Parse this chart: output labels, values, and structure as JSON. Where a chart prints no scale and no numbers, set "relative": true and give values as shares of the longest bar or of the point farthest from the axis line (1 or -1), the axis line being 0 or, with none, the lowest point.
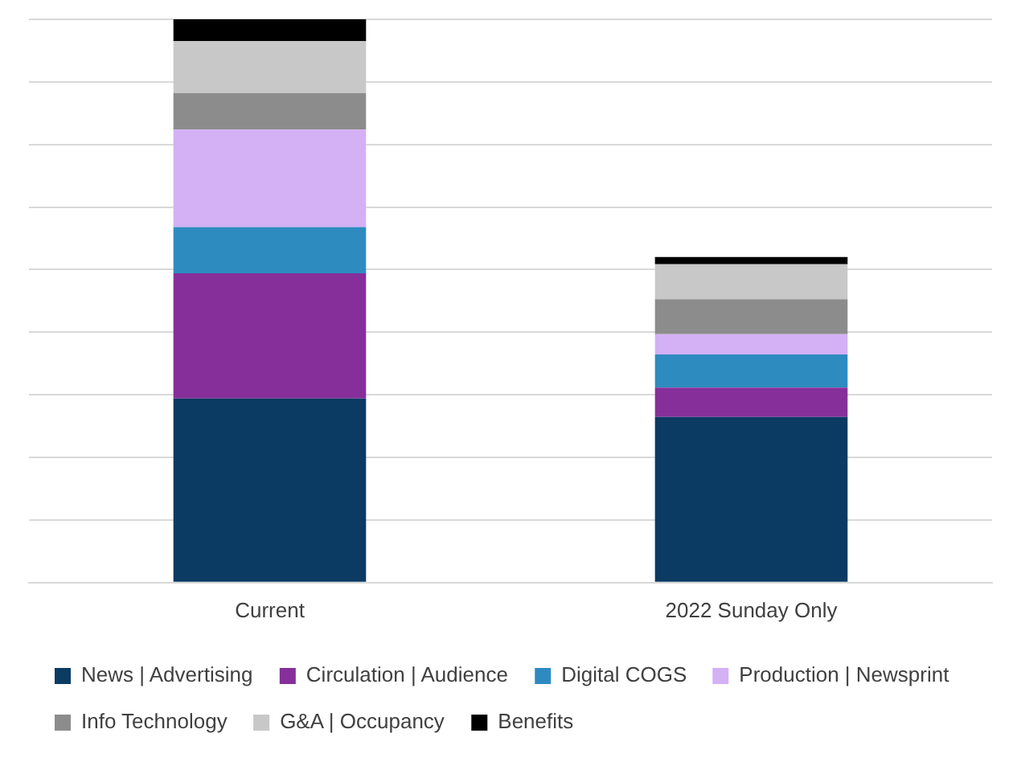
{
  "chart_data": {
    "type": "bar",
    "stacked": true,
    "relative": true,
    "categories": [
      "Current",
      "2022 Sunday Only"
    ],
    "series": [
      {
        "name": "News | Advertising",
        "color": "#0b3a63",
        "values": [
          0.327,
          0.294
        ]
      },
      {
        "name": "Circulation | Audience",
        "color": "#862f9a",
        "values": [
          0.222,
          0.052
        ]
      },
      {
        "name": "Digital COGS",
        "color": "#2e8bc0",
        "values": [
          0.082,
          0.059
        ]
      },
      {
        "name": "Production | Newsprint",
        "color": "#d4b0f5",
        "values": [
          0.173,
          0.036
        ]
      },
      {
        "name": "Info Technology",
        "color": "#8c8c8c",
        "values": [
          0.065,
          0.062
        ]
      },
      {
        "name": "G&A | Occupancy",
        "color": "#c8c8c8",
        "values": [
          0.092,
          0.062
        ]
      },
      {
        "name": "Benefits",
        "color": "#000000",
        "values": [
          0.039,
          0.013
        ]
      }
    ],
    "grid": "y",
    "legend": "bottom"
  }
}
